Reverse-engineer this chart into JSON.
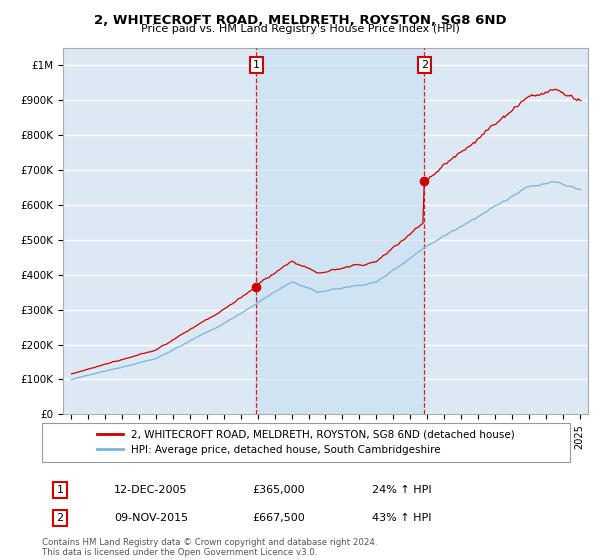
{
  "title": "2, WHITECROFT ROAD, MELDRETH, ROYSTON, SG8 6ND",
  "subtitle": "Price paid vs. HM Land Registry's House Price Index (HPI)",
  "hpi_label": "HPI: Average price, detached house, South Cambridgeshire",
  "property_label": "2, WHITECROFT ROAD, MELDRETH, ROYSTON, SG8 6ND (detached house)",
  "sale1_date": "12-DEC-2005",
  "sale1_price": 365000,
  "sale1_pct": "24% ↑ HPI",
  "sale2_date": "09-NOV-2015",
  "sale2_price": 667500,
  "sale2_pct": "43% ↑ HPI",
  "sale1_year": 2005.92,
  "sale2_year": 2015.84,
  "ylim_max": 1050000,
  "ylim_min": 0,
  "xlim_min": 1994.5,
  "xlim_max": 2025.5,
  "hpi_color": "#7ab4d8",
  "price_color": "#cc0000",
  "vline_color": "#cc0000",
  "shade_color": "#d0e4f0",
  "bg_color": "#dce9f5",
  "footer": "Contains HM Land Registry data © Crown copyright and database right 2024.\nThis data is licensed under the Open Government Licence v3.0.",
  "yticks": [
    0,
    100000,
    200000,
    300000,
    400000,
    500000,
    600000,
    700000,
    800000,
    900000,
    1000000
  ],
  "ytick_labels": [
    "£0",
    "£100K",
    "£200K",
    "£300K",
    "£400K",
    "£500K",
    "£600K",
    "£700K",
    "£800K",
    "£900K",
    "£1M"
  ]
}
